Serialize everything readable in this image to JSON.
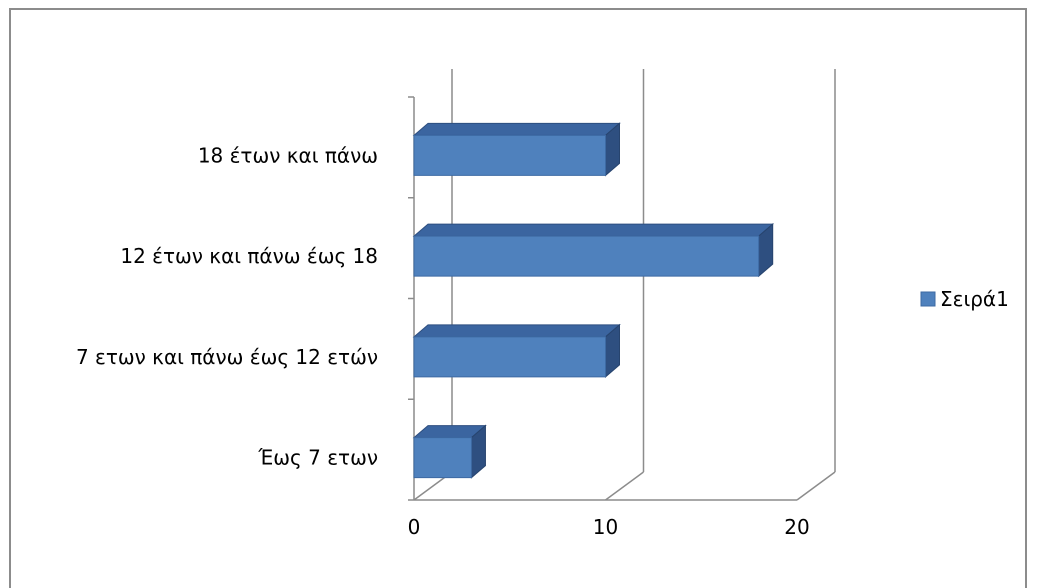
{
  "chart_data": {
    "type": "bar",
    "orientation": "horizontal",
    "style": "3d",
    "categories": [
      "Έως 7 ετων",
      "7 ετων και πάνω έως 12 ετών",
      "12 έτων και πάνω έως 18",
      "18 έτων και πάνω"
    ],
    "series": [
      {
        "name": "Σειρά1",
        "values": [
          3,
          10,
          18,
          10
        ],
        "color": "#4f81bd"
      }
    ],
    "xlim": [
      0,
      20
    ],
    "xticks": [
      "0",
      "10",
      "20"
    ],
    "grid": true,
    "legend_position": "right"
  }
}
